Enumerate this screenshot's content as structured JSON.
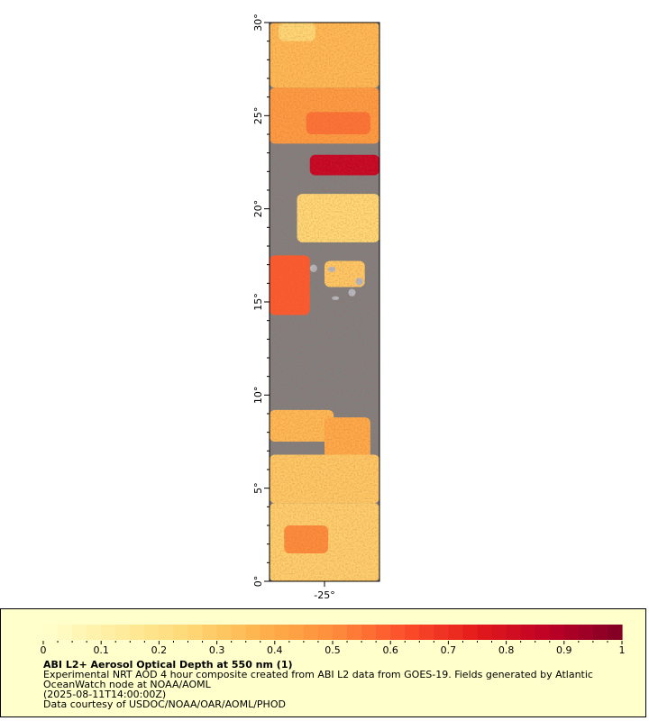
{
  "map": {
    "lat_axis": {
      "ticks": [
        {
          "value": 0,
          "label": "0°"
        },
        {
          "value": 5,
          "label": "5°"
        },
        {
          "value": 10,
          "label": "10°"
        },
        {
          "value": 15,
          "label": "15°"
        },
        {
          "value": 20,
          "label": "20°"
        },
        {
          "value": 25,
          "label": "25°"
        },
        {
          "value": 30,
          "label": "30°"
        }
      ],
      "range": [
        0,
        30
      ],
      "minor_step": 1
    },
    "lon_axis": {
      "ticks": [
        {
          "value": -25,
          "label": "-25°"
        }
      ],
      "range": [
        -28.0,
        -22.0
      ]
    },
    "colors": {
      "no_data": "#808080",
      "land": "#b4b8c0",
      "frame": "#000000"
    },
    "regions": [
      {
        "kind": "aod",
        "aod": 0.35,
        "lat": [
          26.5,
          30
        ],
        "lon": [
          -28,
          -22
        ]
      },
      {
        "kind": "aod",
        "aod": 0.45,
        "lat": [
          23.5,
          26.5
        ],
        "lon": [
          -28,
          -22
        ]
      },
      {
        "kind": "aod",
        "aod": 0.55,
        "lat": [
          24.0,
          25.2
        ],
        "lon": [
          -26.0,
          -22.5
        ]
      },
      {
        "kind": "aod",
        "aod": 0.25,
        "lat": [
          29.0,
          30
        ],
        "lon": [
          -27.5,
          -25.5
        ]
      },
      {
        "kind": "aod",
        "aod": 0.85,
        "lat": [
          21.8,
          22.9
        ],
        "lon": [
          -25.8,
          -22
        ]
      },
      {
        "kind": "aod",
        "aod": 0.25,
        "lat": [
          18.2,
          20.8
        ],
        "lon": [
          -26.5,
          -22
        ]
      },
      {
        "kind": "aod",
        "aod": 0.6,
        "lat": [
          14.3,
          17.5
        ],
        "lon": [
          -28,
          -25.8
        ]
      },
      {
        "kind": "aod",
        "aod": 0.3,
        "lat": [
          15.8,
          17.2
        ],
        "lon": [
          -25.0,
          -22.8
        ]
      },
      {
        "kind": "aod",
        "aod": 0.35,
        "lat": [
          7.5,
          9.2
        ],
        "lon": [
          -28,
          -24.5
        ]
      },
      {
        "kind": "aod",
        "aod": 0.4,
        "lat": [
          6.6,
          8.8
        ],
        "lon": [
          -25.0,
          -22.5
        ]
      },
      {
        "kind": "aod",
        "aod": 0.3,
        "lat": [
          4.2,
          6.8
        ],
        "lon": [
          -28,
          -22
        ]
      },
      {
        "kind": "aod",
        "aod": 0.28,
        "lat": [
          0,
          4.2
        ],
        "lon": [
          -28,
          -22
        ]
      },
      {
        "kind": "aod",
        "aod": 0.5,
        "lat": [
          1.5,
          3.0
        ],
        "lon": [
          -27.2,
          -24.8
        ]
      },
      {
        "kind": "land",
        "lat": [
          16.6,
          17.0
        ],
        "lon": [
          -25.8,
          -25.4
        ]
      },
      {
        "kind": "land",
        "lat": [
          16.6,
          16.9
        ],
        "lon": [
          -24.8,
          -24.4
        ]
      },
      {
        "kind": "land",
        "lat": [
          15.9,
          16.3
        ],
        "lon": [
          -23.3,
          -22.9
        ]
      },
      {
        "kind": "land",
        "lat": [
          15.1,
          15.3
        ],
        "lon": [
          -24.6,
          -24.2
        ]
      },
      {
        "kind": "land",
        "lat": [
          15.3,
          15.7
        ],
        "lon": [
          -23.7,
          -23.3
        ]
      }
    ]
  },
  "colorbar": {
    "min": 0,
    "max": 1,
    "ticks": [
      {
        "value": 0,
        "label": "0"
      },
      {
        "value": 0.1,
        "label": "0.1"
      },
      {
        "value": 0.2,
        "label": "0.2"
      },
      {
        "value": 0.3,
        "label": "0.3"
      },
      {
        "value": 0.4,
        "label": "0.4"
      },
      {
        "value": 0.5,
        "label": "0.5"
      },
      {
        "value": 0.6,
        "label": "0.6"
      },
      {
        "value": 0.7,
        "label": "0.7"
      },
      {
        "value": 0.8,
        "label": "0.8"
      },
      {
        "value": 0.9,
        "label": "0.9"
      },
      {
        "value": 1,
        "label": "1"
      }
    ],
    "minor_step": 0.025,
    "stops": [
      "#ffffcc",
      "#ffeda0",
      "#fed976",
      "#feb24c",
      "#fd8d3c",
      "#fc4e2a",
      "#e31a1c",
      "#bd0026",
      "#800026"
    ],
    "background": "#ffffcc"
  },
  "caption": {
    "title": "ABI L2+ Aerosol Optical Depth at 550 nm (1)",
    "line1": "Experimental NRT AOD 4 hour composite created from ABI L2 data from GOES-19. Fields generated by Atlantic OceanWatch node at NOAA/AOML",
    "line2": "(2025-08-11T14:00:00Z)",
    "line3": "Data courtesy of USDOC/NOAA/OAR/AOML/PHOD"
  }
}
